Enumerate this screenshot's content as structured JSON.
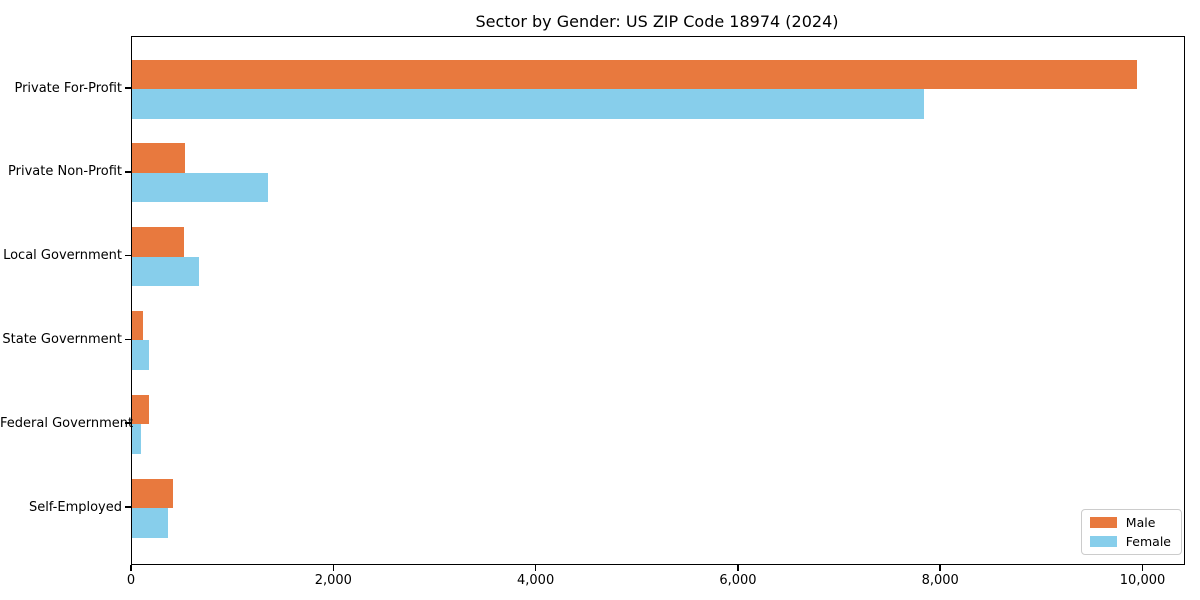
{
  "chart_data": {
    "type": "bar",
    "orientation": "horizontal",
    "title": "Sector by Gender: US ZIP Code 18974 (2024)",
    "categories": [
      "Private For-Profit",
      "Private Non-Profit",
      "Local Government",
      "State Government",
      "Federal Government",
      "Self-Employed"
    ],
    "series": [
      {
        "name": "Male",
        "color": "#E8793E",
        "values": [
          9930,
          520,
          510,
          105,
          165,
          400
        ]
      },
      {
        "name": "Female",
        "color": "#87CEEB",
        "values": [
          7830,
          1345,
          660,
          170,
          90,
          355
        ]
      }
    ],
    "xlabel": "",
    "ylabel": "",
    "xlim": [
      0,
      10400
    ],
    "xtick_values": [
      0,
      2000,
      4000,
      6000,
      8000,
      10000
    ],
    "xtick_labels": [
      "0",
      "2,000",
      "4,000",
      "6,000",
      "8,000",
      "10,000"
    ],
    "grid": false,
    "legend": {
      "position": "lower right",
      "entries": [
        "Male",
        "Female"
      ]
    },
    "frame_color": "#000000",
    "background_color": "#ffffff"
  }
}
